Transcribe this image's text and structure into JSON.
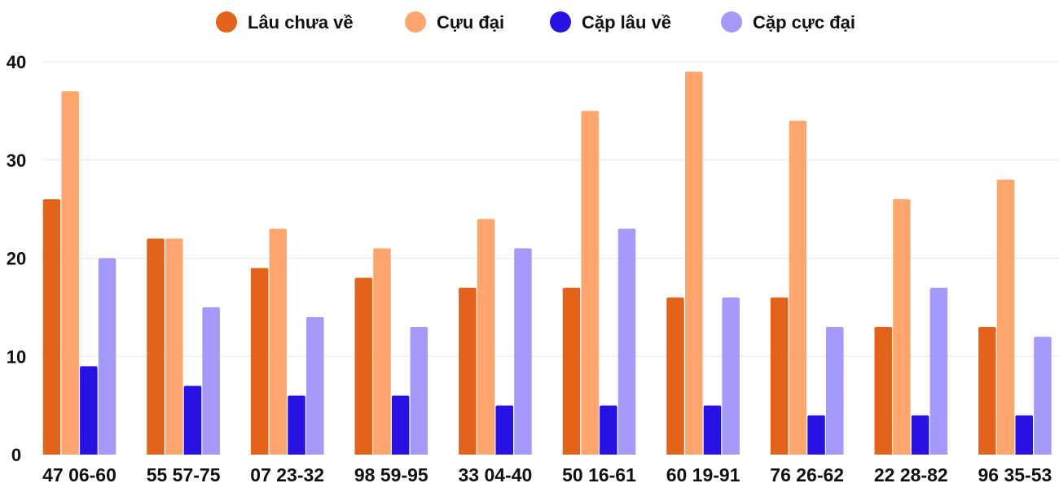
{
  "chart_data": {
    "type": "bar",
    "title": "",
    "xlabel": "",
    "ylabel": "",
    "ylim": [
      0,
      40
    ],
    "yticks": [
      0,
      10,
      20,
      30,
      40
    ],
    "grid": true,
    "legend_position": "top-center",
    "categories": [
      "47 06-60",
      "55 57-75",
      "07 23-32",
      "98 59-95",
      "33 04-40",
      "50 16-61",
      "60 19-91",
      "76 26-62",
      "22 28-82",
      "96 35-53"
    ],
    "series": [
      {
        "name": "Lâu chưa về",
        "color": "#E4631A",
        "values": [
          26,
          22,
          19,
          18,
          17,
          17,
          16,
          16,
          13,
          13
        ]
      },
      {
        "name": "Cựu đại",
        "color": "#FFA66E",
        "values": [
          37,
          22,
          23,
          21,
          24,
          35,
          39,
          34,
          26,
          28
        ]
      },
      {
        "name": "Cặp lâu về",
        "color": "#2712E3",
        "values": [
          9,
          7,
          6,
          6,
          5,
          5,
          5,
          4,
          4,
          4
        ]
      },
      {
        "name": "Cặp cực đại",
        "color": "#A39AFB",
        "values": [
          20,
          15,
          14,
          13,
          21,
          23,
          16,
          13,
          17,
          12
        ]
      }
    ]
  }
}
